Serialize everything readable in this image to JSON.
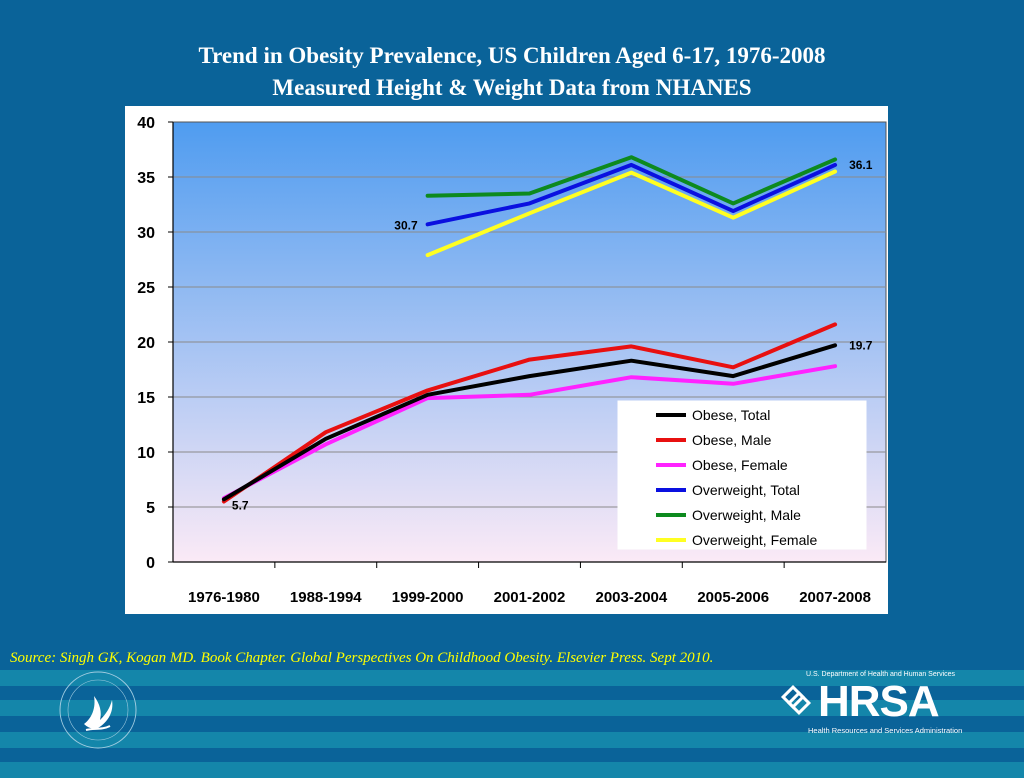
{
  "title": {
    "line1": "Trend in Obesity Prevalence, US Children Aged 6-17, 1976-2008",
    "line2": "Measured Height & Weight Data from NHANES"
  },
  "source": "Source: Singh GK, Kogan MD. Book Chapter. Global Perspectives On Childhood Obesity. Elsevier Press. Sept 2010.",
  "logos": {
    "hhs_seal": "hhs-eagle-seal",
    "hrsa": {
      "dept": "U.S. Department of Health and Human Services",
      "name": "HRSA",
      "full": "Health Resources and Services Administration"
    }
  },
  "colors": {
    "background": "#0a6399",
    "stripe": "#1486aa",
    "title": "#ffffff",
    "source": "#ffff00",
    "plot_top": "#4f9cf0",
    "plot_bottom": "#fbeaf6"
  },
  "chart_data": {
    "type": "line",
    "categories": [
      "1976-1980",
      "1988-1994",
      "1999-2000",
      "2001-2002",
      "2003-2004",
      "2005-2006",
      "2007-2008"
    ],
    "ylim": [
      0,
      40
    ],
    "yticks": [
      0,
      5,
      10,
      15,
      20,
      25,
      30,
      35,
      40
    ],
    "grid": true,
    "legend_position": "bottom-right",
    "series": [
      {
        "name": "Obese, Total",
        "color": "#000000",
        "values": [
          5.7,
          11.2,
          15.2,
          16.9,
          18.3,
          16.9,
          19.7
        ]
      },
      {
        "name": "Obese, Male",
        "color": "#e81010",
        "values": [
          5.5,
          11.8,
          15.6,
          18.4,
          19.6,
          17.7,
          21.6
        ]
      },
      {
        "name": "Obese, Female",
        "color": "#ff22ff",
        "values": [
          5.8,
          10.7,
          14.9,
          15.2,
          16.8,
          16.2,
          17.8
        ]
      },
      {
        "name": "Overweight, Total",
        "color": "#0a10e0",
        "values": [
          null,
          null,
          30.7,
          32.6,
          36.1,
          31.9,
          36.1
        ]
      },
      {
        "name": "Overweight, Male",
        "color": "#0d8a1e",
        "values": [
          null,
          null,
          33.3,
          33.5,
          36.8,
          32.6,
          36.6
        ]
      },
      {
        "name": "Overweight, Female",
        "color": "#ffff22",
        "values": [
          null,
          null,
          27.9,
          31.7,
          35.4,
          31.3,
          35.5
        ]
      }
    ],
    "annotations": [
      {
        "text": "5.7",
        "series": "Obese, Total",
        "index": 0
      },
      {
        "text": "30.7",
        "series": "Overweight, Total",
        "index": 2
      },
      {
        "text": "36.1",
        "series": "Overweight, Total",
        "index": 6
      },
      {
        "text": "19.7",
        "series": "Obese, Total",
        "index": 6
      }
    ]
  }
}
